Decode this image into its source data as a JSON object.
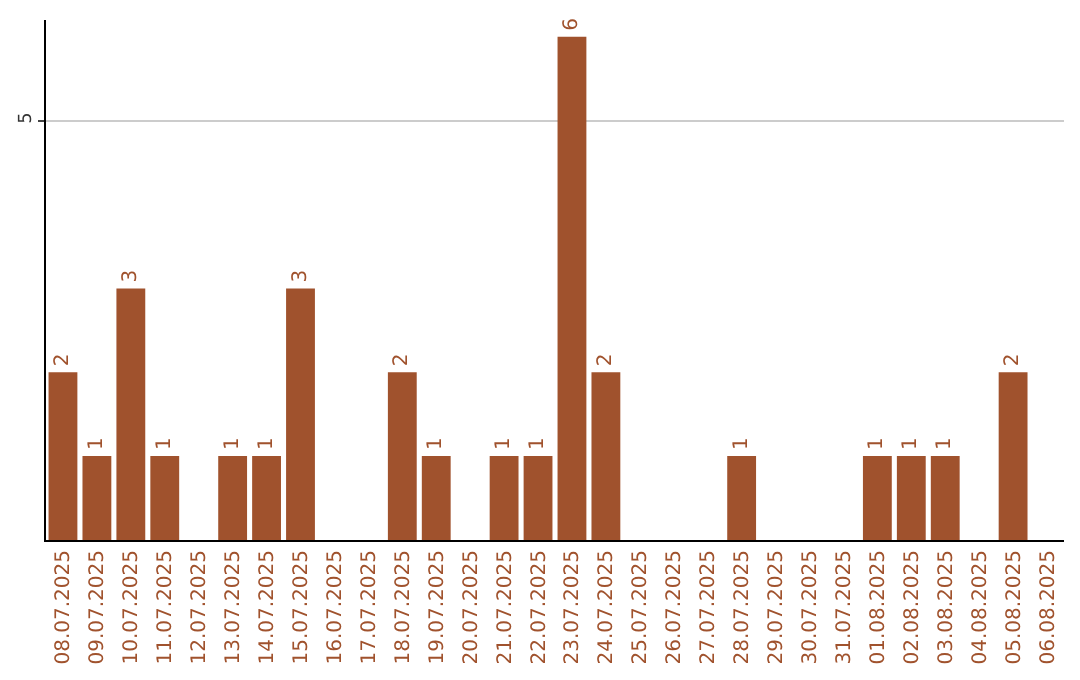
{
  "chart_data": {
    "type": "bar",
    "categories": [
      "08.07.2025",
      "09.07.2025",
      "10.07.2025",
      "11.07.2025",
      "12.07.2025",
      "13.07.2025",
      "14.07.2025",
      "15.07.2025",
      "16.07.2025",
      "17.07.2025",
      "18.07.2025",
      "19.07.2025",
      "20.07.2025",
      "21.07.2025",
      "22.07.2025",
      "23.07.2025",
      "24.07.2025",
      "25.07.2025",
      "26.07.2025",
      "27.07.2025",
      "28.07.2025",
      "29.07.2025",
      "30.07.2025",
      "31.07.2025",
      "01.08.2025",
      "02.08.2025",
      "03.08.2025",
      "04.08.2025",
      "05.08.2025",
      "06.08.2025"
    ],
    "values": [
      2,
      1,
      3,
      1,
      0,
      1,
      1,
      3,
      0,
      0,
      2,
      1,
      0,
      1,
      1,
      6,
      2,
      0,
      0,
      0,
      1,
      0,
      0,
      0,
      1,
      1,
      1,
      0,
      2,
      0
    ],
    "value_labels": [
      "2",
      "1",
      "3",
      "1",
      null,
      "1",
      "1",
      "3",
      null,
      null,
      "2",
      "1",
      null,
      "1",
      "1",
      "6",
      "2",
      null,
      null,
      null,
      "1",
      null,
      null,
      null,
      "1",
      "1",
      "1",
      null,
      "2",
      null
    ],
    "color": "#a0522d",
    "ylim": [
      0,
      6.2
    ],
    "yticks": [
      5
    ],
    "grid": "y",
    "legend": false
  }
}
